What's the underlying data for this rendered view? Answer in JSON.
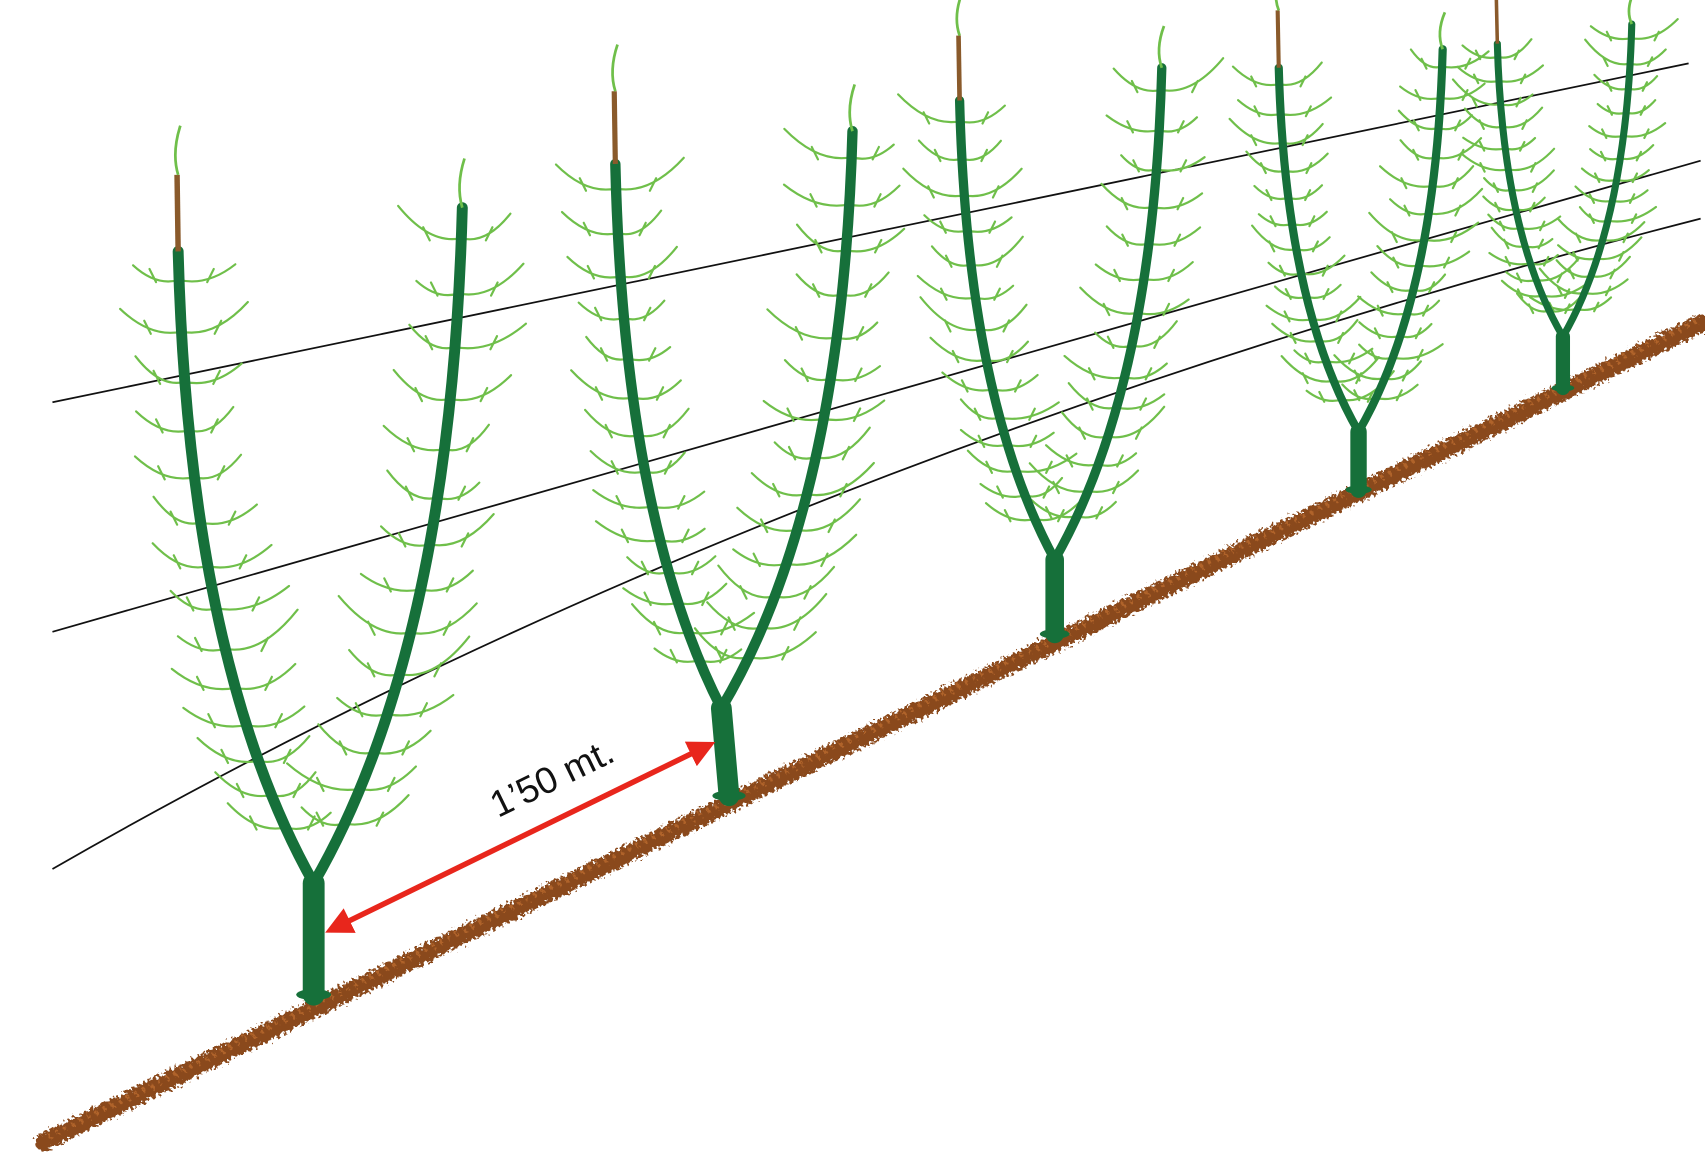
{
  "annotation": "1’50 mt."
}
